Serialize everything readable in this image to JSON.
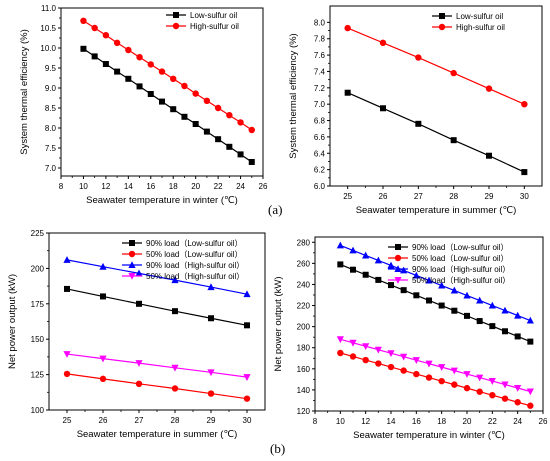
{
  "figure": {
    "panel_labels": {
      "a": "(a)",
      "b": "(b)"
    }
  },
  "chart_data": [
    {
      "type": "line",
      "xlabel": "Seawater temperature in winter (℃)",
      "ylabel": "System thermal efficiency (%)",
      "xlim": [
        8,
        26
      ],
      "ylim": [
        6.8,
        11.0
      ],
      "xticks": [
        8,
        10,
        12,
        14,
        16,
        18,
        20,
        22,
        24,
        26
      ],
      "yticks": [
        7.0,
        7.5,
        8.0,
        8.5,
        9.0,
        9.5,
        10.0,
        10.5,
        11.0
      ],
      "ytick_decimals": 1,
      "grid": false,
      "legend_position": "top-right",
      "x": [
        10,
        11,
        12,
        13,
        14,
        15,
        16,
        17,
        18,
        19,
        20,
        21,
        22,
        23,
        24,
        25
      ],
      "series": [
        {
          "name": "Low-sulfur oil",
          "color": "#000000",
          "marker": "square",
          "values": [
            9.98,
            9.79,
            9.6,
            9.41,
            9.23,
            9.04,
            8.85,
            8.66,
            8.47,
            8.28,
            8.1,
            7.91,
            7.72,
            7.53,
            7.34,
            7.15
          ]
        },
        {
          "name": "High-sulfur oil",
          "color": "#ff0000",
          "marker": "circle",
          "values": [
            10.68,
            10.5,
            10.32,
            10.13,
            9.95,
            9.77,
            9.59,
            9.41,
            9.23,
            9.05,
            8.86,
            8.68,
            8.5,
            8.32,
            8.14,
            7.95
          ]
        }
      ]
    },
    {
      "type": "line",
      "xlabel": "Seawater temperature in summer (℃)",
      "ylabel": "System thermal efficiency (%)",
      "xlim": [
        24.5,
        30.5
      ],
      "ylim": [
        6.0,
        8.2
      ],
      "xticks": [
        25,
        26,
        27,
        28,
        29,
        30
      ],
      "yticks": [
        6.0,
        6.2,
        6.4,
        6.6,
        6.8,
        7.0,
        7.2,
        7.4,
        7.6,
        7.8,
        8.0
      ],
      "ytick_decimals": 1,
      "grid": false,
      "legend_position": "top-right",
      "x": [
        25,
        26,
        27,
        28,
        29,
        30
      ],
      "series": [
        {
          "name": "Low-sulfur oil",
          "color": "#000000",
          "marker": "square",
          "values": [
            7.14,
            6.95,
            6.76,
            6.56,
            6.37,
            6.17
          ]
        },
        {
          "name": "High-sulfur oil",
          "color": "#ff0000",
          "marker": "circle",
          "values": [
            7.93,
            7.75,
            7.57,
            7.38,
            7.19,
            7.0
          ]
        }
      ]
    },
    {
      "type": "line",
      "xlabel": "Seawater temperature in summer (℃)",
      "ylabel": "Net power output (kW)",
      "xlim": [
        24.5,
        30.5
      ],
      "ylim": [
        100,
        225
      ],
      "xticks": [
        25,
        26,
        27,
        28,
        29,
        30
      ],
      "yticks": [
        100,
        125,
        150,
        175,
        200,
        225
      ],
      "ytick_decimals": 0,
      "grid": false,
      "legend_position": "top-right",
      "x": [
        25,
        26,
        27,
        28,
        29,
        30
      ],
      "series": [
        {
          "name": "90% load（Low-sulfur oil）",
          "color": "#000000",
          "marker": "square",
          "values": [
            185.5,
            180.2,
            175.0,
            169.8,
            164.8,
            159.8
          ]
        },
        {
          "name": "50% load（Low-sulfur oil）",
          "color": "#ff0000",
          "marker": "circle",
          "values": [
            125.5,
            122.0,
            118.5,
            115.2,
            111.6,
            108.0
          ]
        },
        {
          "name": "90% load（High-sulfur oil）",
          "color": "#0000ff",
          "marker": "triangle-up",
          "values": [
            206.0,
            201.2,
            196.5,
            191.7,
            186.8,
            181.8
          ]
        },
        {
          "name": "50% load（High-sulfur oil）",
          "color": "#ff00ff",
          "marker": "triangle-down",
          "values": [
            139.5,
            136.3,
            133.1,
            129.8,
            126.6,
            123.2
          ]
        }
      ]
    },
    {
      "type": "line",
      "xlabel": "Seawater temperature in winter (℃)",
      "ylabel": "Net power output (kW)",
      "xlim": [
        8,
        26
      ],
      "ylim": [
        120,
        285
      ],
      "xticks": [
        8,
        10,
        12,
        14,
        16,
        18,
        20,
        22,
        24,
        26
      ],
      "yticks": [
        120,
        140,
        160,
        180,
        200,
        220,
        240,
        260,
        280
      ],
      "ytick_decimals": 0,
      "grid": false,
      "legend_position": "top-right",
      "x": [
        10,
        11,
        12,
        13,
        14,
        15,
        16,
        17,
        18,
        19,
        20,
        21,
        22,
        23,
        24,
        25
      ],
      "series": [
        {
          "name": "90% load（Low-sulfur oil）",
          "color": "#000000",
          "marker": "square",
          "values": [
            259.0,
            254.0,
            249.2,
            244.3,
            239.4,
            234.6,
            229.7,
            224.8,
            220.0,
            215.1,
            210.2,
            205.3,
            200.5,
            195.6,
            190.7,
            185.8
          ]
        },
        {
          "name": "50% load（Low-sulfur oil）",
          "color": "#ff0000",
          "marker": "circle",
          "values": [
            175.0,
            171.7,
            168.3,
            165.0,
            161.7,
            158.3,
            155.0,
            151.7,
            148.3,
            145.0,
            141.7,
            138.3,
            135.0,
            131.7,
            128.3,
            125.0
          ]
        },
        {
          "name": "90% load（High-sulfur oil）",
          "color": "#0000ff",
          "marker": "triangle-up",
          "values": [
            277.0,
            272.3,
            267.5,
            262.8,
            258.0,
            253.3,
            248.5,
            243.8,
            239.0,
            234.3,
            229.5,
            224.8,
            220.0,
            215.3,
            210.5,
            205.8
          ]
        },
        {
          "name": "50% load（High-sulfur oil）",
          "color": "#ff00ff",
          "marker": "triangle-down",
          "values": [
            188.0,
            184.7,
            181.4,
            178.1,
            174.8,
            171.5,
            168.2,
            164.9,
            161.6,
            158.3,
            155.0,
            151.7,
            148.4,
            145.1,
            141.8,
            138.5
          ]
        }
      ]
    }
  ]
}
